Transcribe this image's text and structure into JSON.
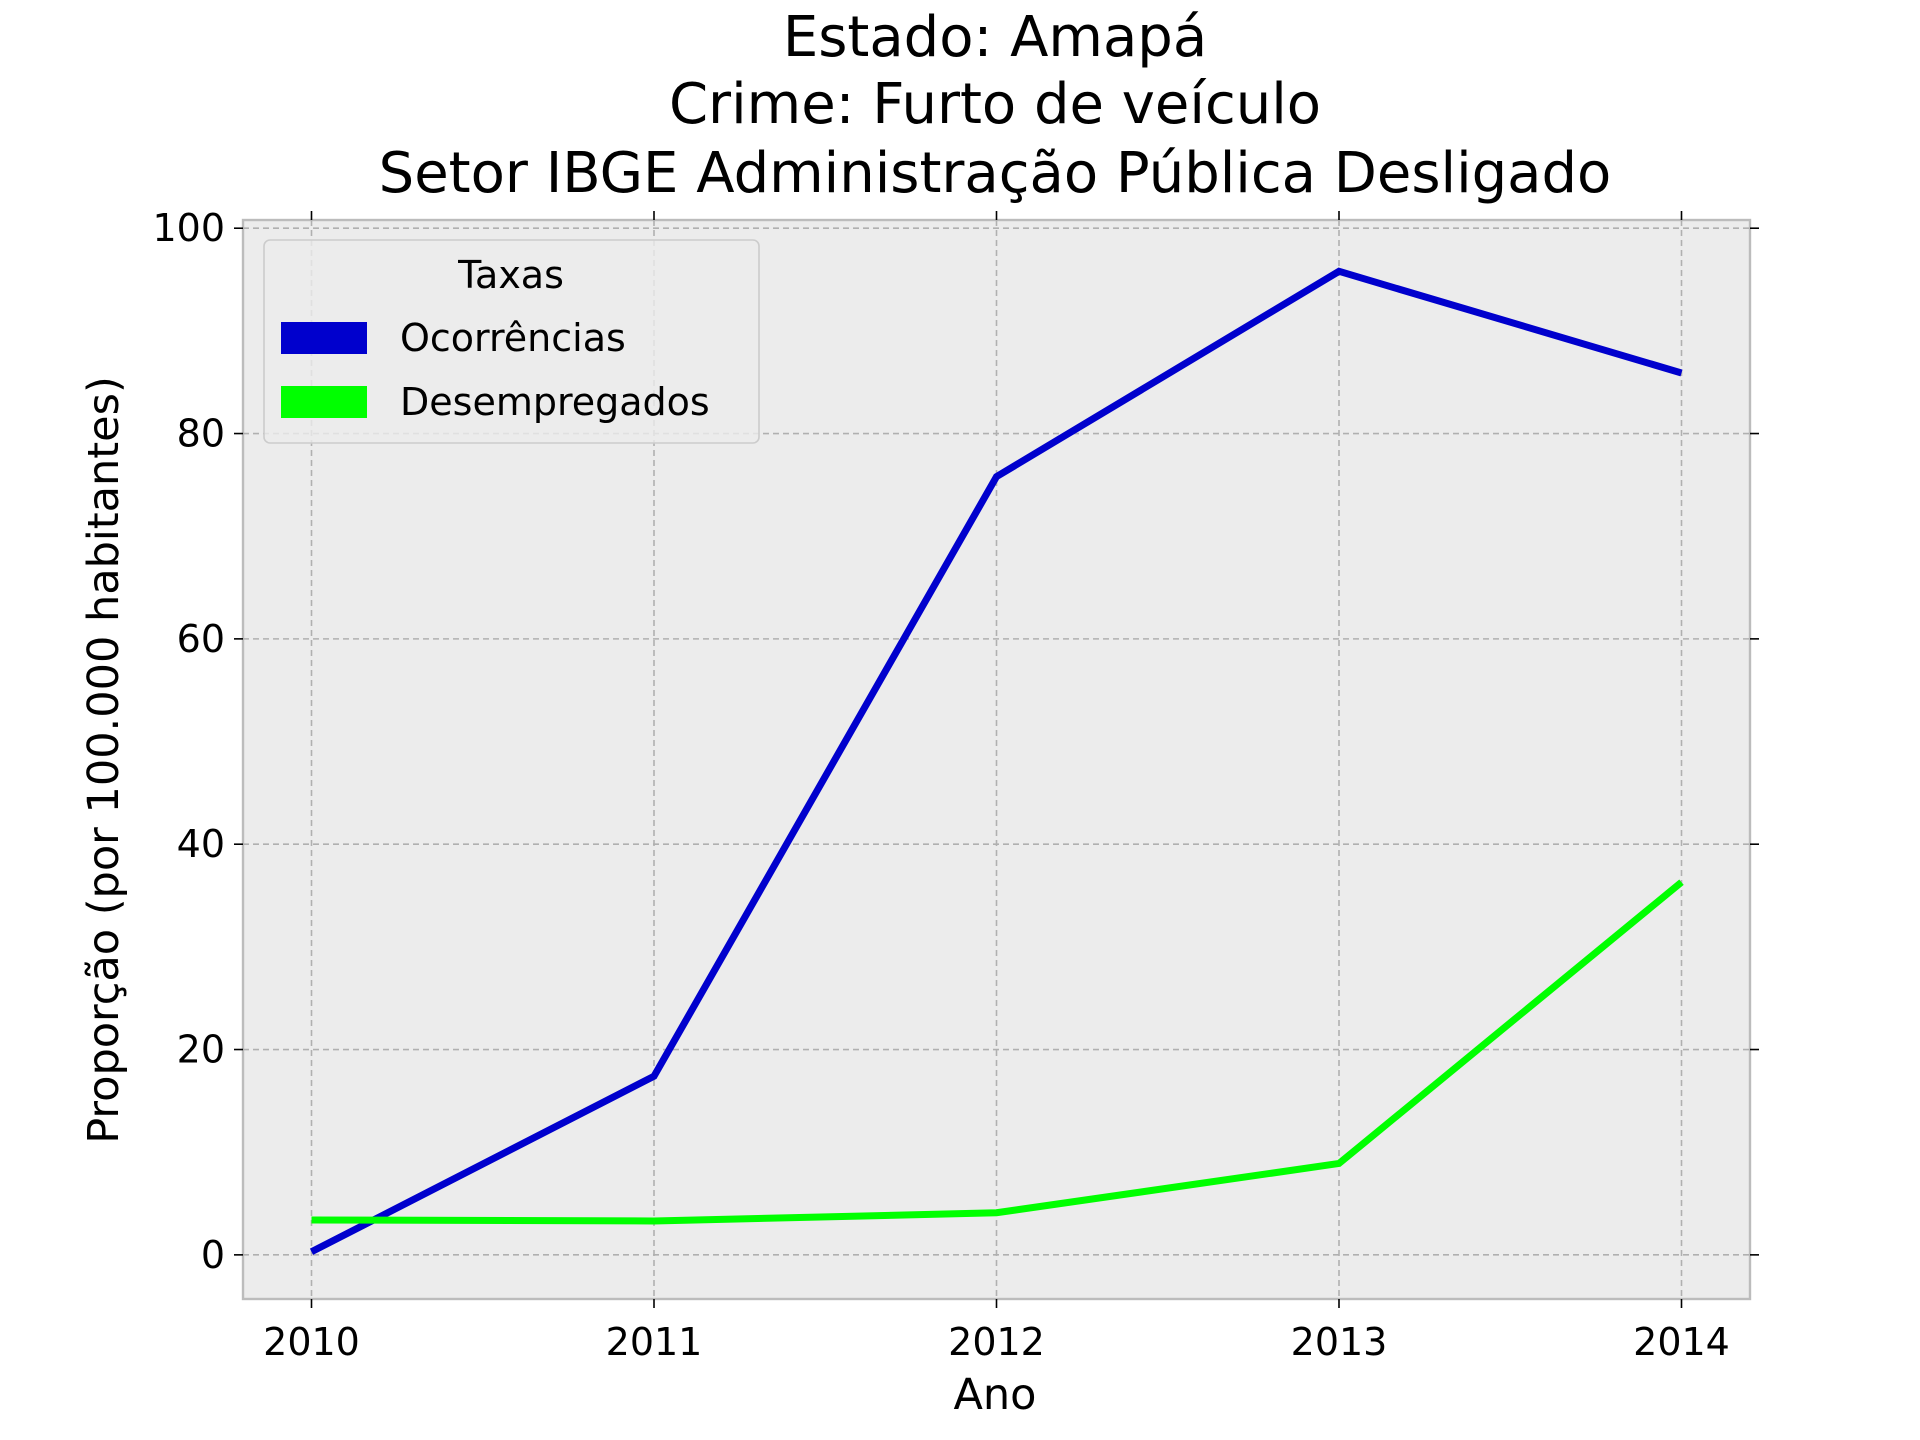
{
  "chart_data": {
    "type": "line",
    "title_lines": [
      "Estado: Amapá",
      "Crime: Furto de veículo",
      "Setor IBGE  Administração Pública   Desligado"
    ],
    "xlabel": "Ano",
    "ylabel": "Proporção (por 100.000 habitantes)",
    "x": [
      2010,
      2011,
      2012,
      2013,
      2014
    ],
    "x_tick_labels": [
      "2010",
      "2011",
      "2012",
      "2013",
      "2014"
    ],
    "y_ticks": [
      0,
      20,
      40,
      60,
      80,
      100
    ],
    "y_tick_labels": [
      "0",
      "20",
      "40",
      "60",
      "80",
      "100"
    ],
    "xlim": [
      2009.8,
      2014.2
    ],
    "ylim": [
      -4.3,
      100.8
    ],
    "grid": true,
    "legend": {
      "title": "Taxas",
      "placement": "upper-left"
    },
    "series": [
      {
        "name": "Ocorrências",
        "color": "#0000cd",
        "values": [
          0.3,
          17.4,
          75.8,
          95.8,
          85.9
        ]
      },
      {
        "name": "Desempregados",
        "color": "#00ff00",
        "values": [
          3.4,
          3.3,
          4.1,
          8.9,
          36.3
        ]
      }
    ],
    "background_color": "#ececec"
  }
}
